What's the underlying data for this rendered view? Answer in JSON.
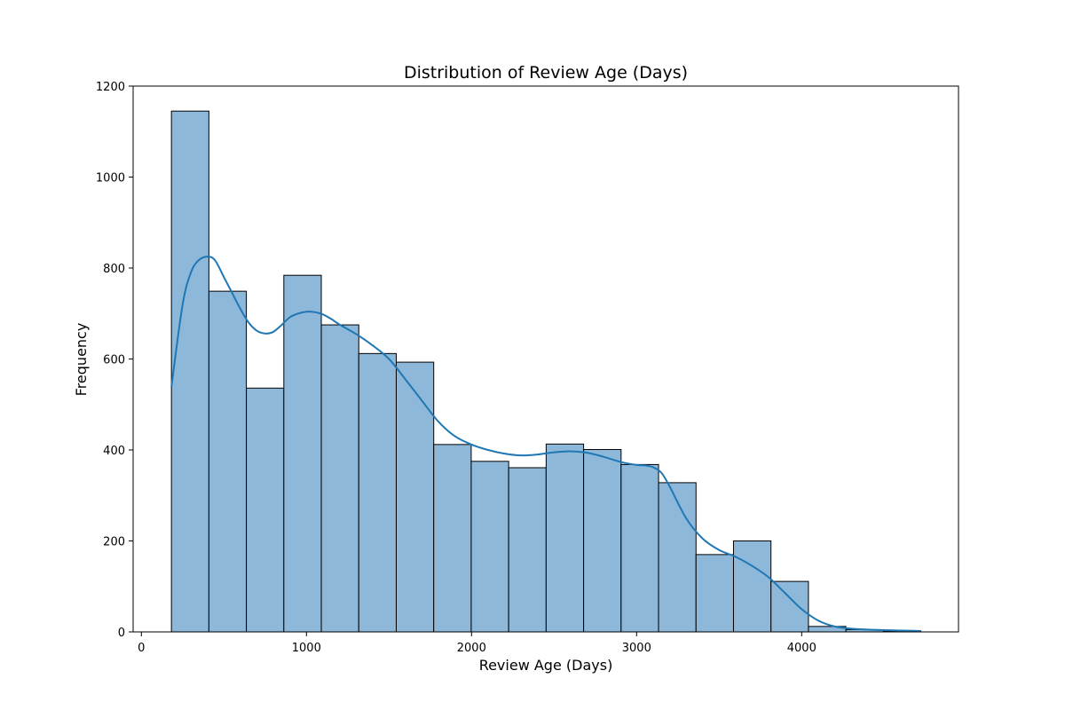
{
  "chart_data": {
    "type": "bar",
    "title": "Distribution of Review Age (Days)",
    "xlabel": "Review Age (Days)",
    "ylabel": "Frequency",
    "xlim": [
      -50,
      4950
    ],
    "ylim": [
      0,
      1200
    ],
    "xticks": [
      0,
      1000,
      2000,
      3000,
      4000
    ],
    "yticks": [
      0,
      200,
      400,
      600,
      800,
      1000,
      1200
    ],
    "grid": false,
    "bar_fill": "#8db8d9",
    "bar_edge": "#000000",
    "kde_color": "#1f77b4",
    "bins": [
      {
        "start": 182,
        "end": 409,
        "count": 1145
      },
      {
        "start": 409,
        "end": 636,
        "count": 749
      },
      {
        "start": 636,
        "end": 863,
        "count": 536
      },
      {
        "start": 863,
        "end": 1090,
        "count": 784
      },
      {
        "start": 1090,
        "end": 1317,
        "count": 675
      },
      {
        "start": 1317,
        "end": 1544,
        "count": 612
      },
      {
        "start": 1544,
        "end": 1771,
        "count": 593
      },
      {
        "start": 1771,
        "end": 1998,
        "count": 412
      },
      {
        "start": 1998,
        "end": 2225,
        "count": 375
      },
      {
        "start": 2225,
        "end": 2452,
        "count": 361
      },
      {
        "start": 2452,
        "end": 2679,
        "count": 413
      },
      {
        "start": 2679,
        "end": 2906,
        "count": 401
      },
      {
        "start": 2906,
        "end": 3133,
        "count": 368
      },
      {
        "start": 3133,
        "end": 3360,
        "count": 328
      },
      {
        "start": 3360,
        "end": 3587,
        "count": 170
      },
      {
        "start": 3587,
        "end": 3814,
        "count": 200
      },
      {
        "start": 3814,
        "end": 4041,
        "count": 111
      },
      {
        "start": 4041,
        "end": 4268,
        "count": 12
      },
      {
        "start": 4268,
        "end": 4495,
        "count": 5
      },
      {
        "start": 4495,
        "end": 4722,
        "count": 2
      }
    ],
    "kde": {
      "x": [
        182,
        250,
        300,
        350,
        409,
        450,
        500,
        550,
        600,
        650,
        700,
        750,
        800,
        850,
        900,
        950,
        1000,
        1050,
        1100,
        1150,
        1200,
        1300,
        1400,
        1500,
        1600,
        1700,
        1800,
        1900,
        2000,
        2100,
        2200,
        2300,
        2400,
        2500,
        2600,
        2700,
        2800,
        2900,
        3000,
        3050,
        3100,
        3150,
        3200,
        3300,
        3400,
        3500,
        3600,
        3700,
        3800,
        3900,
        4000,
        4100,
        4200,
        4300,
        4400,
        4500,
        4600,
        4722
      ],
      "y": [
        540,
        720,
        790,
        818,
        825,
        815,
        780,
        745,
        710,
        680,
        662,
        656,
        660,
        675,
        692,
        700,
        704,
        703,
        698,
        688,
        676,
        655,
        630,
        600,
        555,
        508,
        462,
        430,
        412,
        400,
        392,
        388,
        390,
        395,
        397,
        394,
        385,
        374,
        367,
        366,
        362,
        350,
        320,
        250,
        205,
        180,
        165,
        145,
        120,
        85,
        50,
        25,
        12,
        7,
        5,
        4,
        3,
        2
      ]
    }
  }
}
